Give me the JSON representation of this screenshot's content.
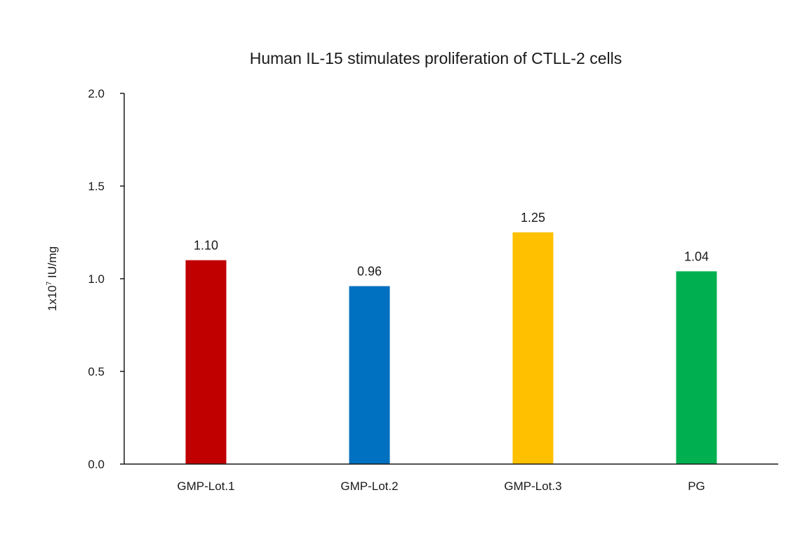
{
  "chart_data": {
    "type": "bar",
    "title": "Human IL-15 stimulates proliferation of CTLL-2 cells",
    "ylabel": {
      "base": "1x10",
      "exponent": "7",
      "unit": " IU/mg"
    },
    "xlabel": "",
    "ylim": [
      0,
      2.0
    ],
    "yticks": [
      "0.0",
      "0.5",
      "1.0",
      "1.5",
      "2.0"
    ],
    "ytick_values": [
      0,
      0.5,
      1.0,
      1.5,
      2.0
    ],
    "categories": [
      "GMP-Lot.1",
      "GMP-Lot.2",
      "GMP-Lot.3",
      "PG"
    ],
    "values": [
      1.1,
      0.96,
      1.25,
      1.04
    ],
    "data_labels": [
      "1.10",
      "0.96",
      "1.25",
      "1.04"
    ],
    "colors": [
      "#c00000",
      "#0070c0",
      "#ffc000",
      "#00b050"
    ],
    "grid": false,
    "legend": "none"
  }
}
